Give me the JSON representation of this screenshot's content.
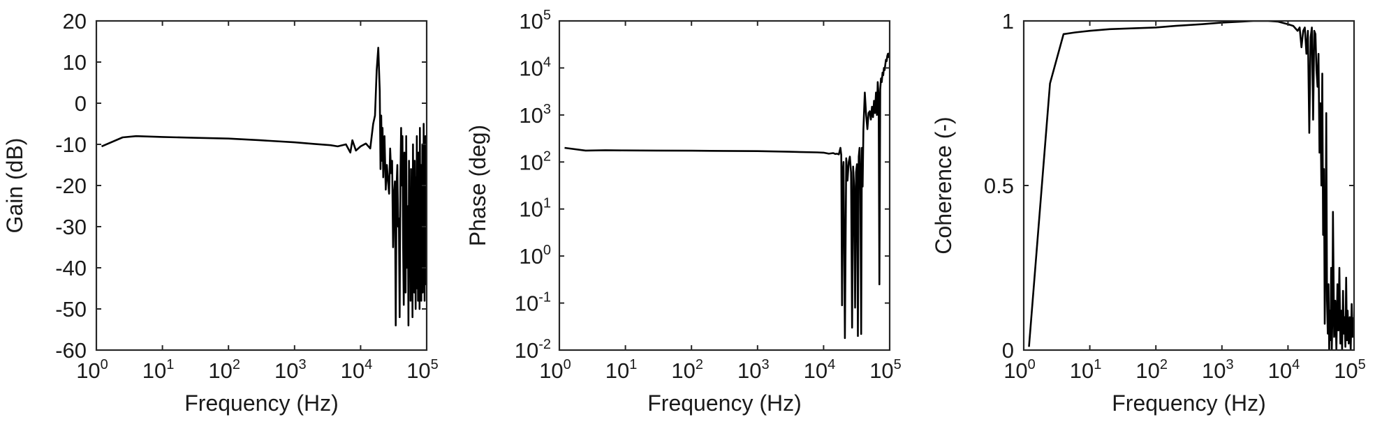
{
  "chart_data": [
    {
      "type": "line",
      "xscale": "log",
      "yscale": "linear",
      "xlabel": "Frequency (Hz)",
      "ylabel": "Gain (dB)",
      "xlim": [
        1,
        100000
      ],
      "ylim": [
        -60,
        20
      ],
      "xticks": [
        {
          "base": "10",
          "exp": "0"
        },
        {
          "base": "10",
          "exp": "1"
        },
        {
          "base": "10",
          "exp": "2"
        },
        {
          "base": "10",
          "exp": "3"
        },
        {
          "base": "10",
          "exp": "4"
        },
        {
          "base": "10",
          "exp": "5"
        }
      ],
      "xtick_values": [
        1,
        10,
        100,
        1000,
        10000,
        100000
      ],
      "yticks": [
        "20",
        "10",
        "0",
        "-10",
        "-20",
        "-30",
        "-40",
        "-50",
        "-60"
      ],
      "ytick_values": [
        20,
        10,
        0,
        -10,
        -20,
        -30,
        -40,
        -50,
        -60
      ],
      "grid": false,
      "series": [
        {
          "color": "#000000",
          "x": [
            1.2,
            2.5,
            4,
            10,
            30,
            100,
            300,
            1000,
            2000,
            3500,
            4500,
            6000,
            7000,
            7500,
            8500,
            10000,
            12000,
            14000,
            15500,
            16500,
            17500,
            18500,
            19500,
            20000,
            20500,
            21000,
            21500,
            22000,
            22500,
            23000,
            24000,
            25000,
            26000,
            27000,
            28000,
            29000,
            30000,
            31000,
            32000,
            33000,
            34000,
            35000,
            36000,
            37000,
            38000,
            39000,
            40000,
            41000,
            42000,
            43000,
            44000,
            45000,
            46000,
            47000,
            48000,
            49000,
            50000,
            51000,
            52000,
            53000,
            54000,
            55000,
            56000,
            57000,
            58000,
            59000,
            60000,
            61000,
            62000,
            63000,
            64000,
            65000,
            66000,
            67000,
            68000,
            69000,
            70000,
            71000,
            72000,
            73000,
            74000,
            75000,
            76000,
            77000,
            78000,
            79000,
            80000,
            81000,
            82000,
            83000,
            84000,
            85000,
            86000,
            87000,
            88000,
            89000,
            90000,
            91000,
            92000,
            93000,
            94000,
            95000,
            96000,
            97000,
            98000
          ],
          "y": [
            -10.5,
            -8.3,
            -8.0,
            -8.2,
            -8.4,
            -8.6,
            -9.0,
            -9.5,
            -9.9,
            -10.2,
            -10.5,
            -10.0,
            -12,
            -9,
            -11.5,
            -10.5,
            -9.8,
            -11,
            -5,
            -3,
            8,
            13.5,
            3,
            -16,
            -3,
            -14,
            -6,
            -18,
            -12,
            -8,
            -21,
            -15,
            -19,
            -22,
            -11,
            -17,
            -14,
            -35,
            -22,
            -19,
            -54,
            -20,
            -15,
            -30,
            -28,
            -52,
            -18,
            -6,
            -20,
            -8,
            -35,
            -49,
            -12,
            -28,
            -46,
            -8,
            -40,
            -30,
            -25,
            -54,
            -14,
            -38,
            -22,
            -48,
            -16,
            -44,
            -28,
            -52,
            -10,
            -35,
            -20,
            -46,
            -14,
            -30,
            -50,
            -18,
            -40,
            -8,
            -45,
            -25,
            -48,
            -12,
            -38,
            -20,
            -50,
            -6,
            -32,
            -44,
            -15,
            -48,
            -25,
            -38,
            -10,
            -46,
            -20,
            -35,
            -5,
            -42,
            -28,
            -48,
            -15,
            -38,
            -8,
            -44,
            -22
          ]
        }
      ]
    },
    {
      "type": "line",
      "xscale": "log",
      "yscale": "log",
      "xlabel": "Frequency (Hz)",
      "ylabel": "Phase (deg)",
      "xlim": [
        1,
        100000
      ],
      "ylim": [
        0.01,
        100000
      ],
      "xticks": [
        {
          "base": "10",
          "exp": "0"
        },
        {
          "base": "10",
          "exp": "1"
        },
        {
          "base": "10",
          "exp": "2"
        },
        {
          "base": "10",
          "exp": "3"
        },
        {
          "base": "10",
          "exp": "4"
        },
        {
          "base": "10",
          "exp": "5"
        }
      ],
      "xtick_values": [
        1,
        10,
        100,
        1000,
        10000,
        100000
      ],
      "yticks": [
        {
          "base": "10",
          "exp": "5"
        },
        {
          "base": "10",
          "exp": "4"
        },
        {
          "base": "10",
          "exp": "3"
        },
        {
          "base": "10",
          "exp": "2"
        },
        {
          "base": "10",
          "exp": "1"
        },
        {
          "base": "10",
          "exp": "0"
        },
        {
          "base": "10",
          "exp": "-1"
        },
        {
          "base": "10",
          "exp": "-2"
        }
      ],
      "ytick_values": [
        100000,
        10000,
        1000,
        100,
        10,
        1,
        0.1,
        0.01
      ],
      "grid": false,
      "series": [
        {
          "color": "#000000",
          "x": [
            1.2,
            2.5,
            5,
            10,
            30,
            100,
            300,
            1000,
            3000,
            8000,
            10000,
            12000,
            14000,
            15000,
            16000,
            17000,
            18000,
            18500,
            19000,
            19500,
            20000,
            21000,
            22000,
            23000,
            24000,
            25000,
            26000,
            27000,
            28000,
            29000,
            30000,
            31000,
            32000,
            33000,
            34000,
            35000,
            36000,
            37000,
            38000,
            39000,
            40000,
            42000,
            44000,
            46000,
            48000,
            50000,
            52000,
            54000,
            56000,
            58000,
            60000,
            62000,
            64000,
            66000,
            68000,
            70000,
            72000,
            74000,
            76000,
            78000,
            80000,
            82000,
            84000,
            86000,
            88000,
            90000,
            92000,
            94000,
            96000,
            98000
          ],
          "y": [
            200,
            175,
            178,
            176,
            175,
            174,
            172,
            170,
            165,
            160,
            158,
            150,
            155,
            148,
            150,
            145,
            200,
            140,
            0.09,
            60,
            100,
            0.018,
            120,
            40,
            100,
            130,
            60,
            0.03,
            80,
            30,
            0.08,
            60,
            90,
            0.02,
            130,
            200,
            50,
            0.022,
            200,
            30,
            500,
            3000,
            1000,
            500,
            1100,
            1200,
            800,
            1500,
            900,
            2000,
            1100,
            3000,
            1000,
            5000,
            2500,
            0.25,
            3500,
            6000,
            5000,
            8000,
            7000,
            10000,
            9000,
            12000,
            15000,
            14000,
            18000,
            20000,
            17000,
            21000
          ]
        }
      ]
    },
    {
      "type": "line",
      "xscale": "log",
      "yscale": "linear",
      "xlabel": "Frequency (Hz)",
      "ylabel": "Coherence (-)",
      "xlim": [
        1,
        100000
      ],
      "ylim": [
        0,
        1
      ],
      "xticks": [
        {
          "base": "10",
          "exp": "0"
        },
        {
          "base": "10",
          "exp": "1"
        },
        {
          "base": "10",
          "exp": "2"
        },
        {
          "base": "10",
          "exp": "3"
        },
        {
          "base": "10",
          "exp": "4"
        },
        {
          "base": "10",
          "exp": "5"
        }
      ],
      "xtick_values": [
        1,
        10,
        100,
        1000,
        10000,
        100000
      ],
      "yticks": [
        "1",
        "0.5",
        "0"
      ],
      "ytick_values": [
        1,
        0.5,
        0
      ],
      "grid": false,
      "series": [
        {
          "color": "#000000",
          "x": [
            1.2,
            2.5,
            4,
            6,
            10,
            20,
            50,
            100,
            200,
            500,
            1000,
            2000,
            3000,
            5000,
            7000,
            10000,
            12000,
            14000,
            15000,
            16000,
            17000,
            18000,
            19000,
            20000,
            21000,
            22000,
            23000,
            24000,
            25000,
            26000,
            27000,
            28000,
            29000,
            30000,
            31000,
            32000,
            33000,
            34000,
            35000,
            36000,
            37000,
            38000,
            39000,
            40000,
            41000,
            42000,
            43000,
            44000,
            45000,
            46000,
            47000,
            48000,
            50000,
            52000,
            54000,
            56000,
            58000,
            60000,
            62000,
            64000,
            66000,
            68000,
            70000,
            72000,
            74000,
            76000,
            78000,
            80000,
            83000,
            86000,
            89000,
            92000,
            95000,
            98000
          ],
          "y": [
            0.01,
            0.81,
            0.96,
            0.965,
            0.97,
            0.975,
            0.978,
            0.98,
            0.985,
            0.99,
            0.995,
            0.998,
            1.0,
            1.0,
            0.998,
            0.99,
            0.985,
            0.97,
            0.98,
            0.92,
            0.97,
            0.98,
            0.9,
            0.97,
            0.66,
            0.95,
            0.98,
            0.7,
            0.97,
            0.96,
            0.85,
            0.8,
            0.9,
            0.6,
            0.75,
            0.5,
            0.84,
            0.35,
            0.55,
            0.08,
            0.3,
            0.72,
            0.15,
            0.05,
            0.2,
            0.0,
            0.12,
            0.03,
            0.25,
            0.0,
            0.1,
            0.42,
            0.04,
            0.15,
            0.0,
            0.2,
            0.06,
            0.25,
            0.02,
            0.12,
            0.0,
            0.18,
            0.05,
            0.1,
            0.01,
            0.22,
            0.03,
            0.12,
            0.02,
            0.1,
            0.0,
            0.14,
            0.04,
            0.1
          ]
        }
      ]
    }
  ]
}
